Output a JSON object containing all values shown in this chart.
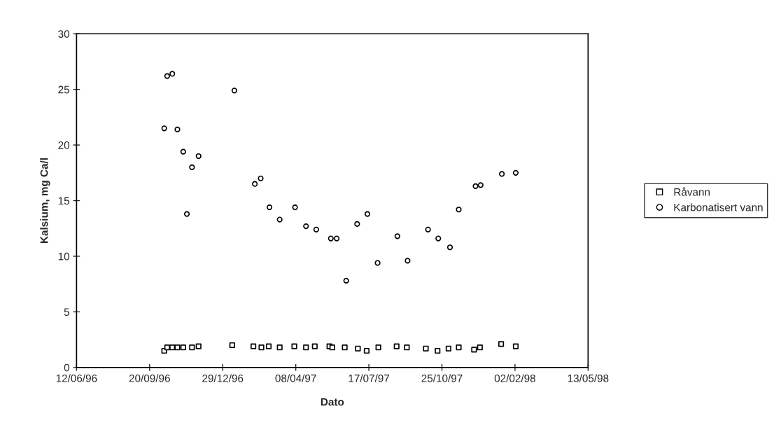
{
  "chart_data": {
    "type": "scatter",
    "xlabel": "Dato",
    "ylabel": "Kalsium, mg Ca/l",
    "xlim": [
      "1996-06-12",
      "1998-05-13"
    ],
    "xticks": [
      {
        "value": "1996-06-12",
        "label": "12/06/96"
      },
      {
        "value": "1996-09-20",
        "label": "20/09/96"
      },
      {
        "value": "1996-12-29",
        "label": "29/12/96"
      },
      {
        "value": "1997-04-08",
        "label": "08/04/97"
      },
      {
        "value": "1997-07-17",
        "label": "17/07/97"
      },
      {
        "value": "1997-10-25",
        "label": "25/10/97"
      },
      {
        "value": "1998-02-02",
        "label": "02/02/98"
      },
      {
        "value": "1998-05-13",
        "label": "13/05/98"
      }
    ],
    "ylim": [
      0,
      30
    ],
    "yticks": [
      0,
      5,
      10,
      15,
      20,
      25,
      30
    ],
    "grid": false,
    "legend": "right",
    "series": [
      {
        "name": "Råvann",
        "color": "#000000",
        "marker": "square",
        "x": [
          "1996-10-10",
          "1996-10-14",
          "1996-10-21",
          "1996-10-28",
          "1996-11-05",
          "1996-11-17",
          "1996-11-26",
          "1997-01-11",
          "1997-02-09",
          "1997-02-20",
          "1997-03-02",
          "1997-03-17",
          "1997-04-06",
          "1997-04-22",
          "1997-05-04",
          "1997-05-24",
          "1997-05-28",
          "1997-06-14",
          "1997-07-02",
          "1997-07-14",
          "1997-07-30",
          "1997-08-24",
          "1997-09-07",
          "1997-10-03",
          "1997-10-19",
          "1997-11-03",
          "1997-11-17",
          "1997-12-08",
          "1997-12-16",
          "1998-01-14",
          "1998-02-03"
        ],
        "values": [
          1.5,
          1.8,
          1.8,
          1.8,
          1.8,
          1.8,
          1.9,
          2.0,
          1.9,
          1.8,
          1.9,
          1.8,
          1.9,
          1.8,
          1.9,
          1.9,
          1.8,
          1.8,
          1.7,
          1.5,
          1.8,
          1.9,
          1.8,
          1.7,
          1.5,
          1.7,
          1.8,
          1.6,
          1.8,
          2.1,
          1.9
        ]
      },
      {
        "name": "Karbonatisert vann",
        "color": "#000000",
        "marker": "circle",
        "x": [
          "1996-10-10",
          "1996-10-14",
          "1996-10-21",
          "1996-10-28",
          "1996-11-05",
          "1996-11-10",
          "1996-11-17",
          "1996-11-26",
          "1997-01-14",
          "1997-02-11",
          "1997-02-19",
          "1997-03-03",
          "1997-03-17",
          "1997-04-07",
          "1997-04-22",
          "1997-05-06",
          "1997-05-26",
          "1997-06-03",
          "1997-06-16",
          "1997-07-01",
          "1997-07-15",
          "1997-07-29",
          "1997-08-25",
          "1997-09-08",
          "1997-10-06",
          "1997-10-20",
          "1997-11-05",
          "1997-11-17",
          "1997-12-10",
          "1997-12-17",
          "1998-01-15",
          "1998-02-03"
        ],
        "values": [
          21.5,
          26.2,
          26.4,
          21.4,
          19.4,
          13.8,
          18.0,
          19.0,
          24.9,
          16.5,
          17.0,
          14.4,
          13.3,
          14.4,
          12.7,
          12.4,
          11.6,
          11.6,
          7.8,
          12.9,
          13.8,
          9.4,
          11.8,
          9.6,
          12.4,
          11.6,
          10.8,
          14.2,
          16.3,
          16.4,
          17.4,
          17.5
        ]
      }
    ]
  }
}
